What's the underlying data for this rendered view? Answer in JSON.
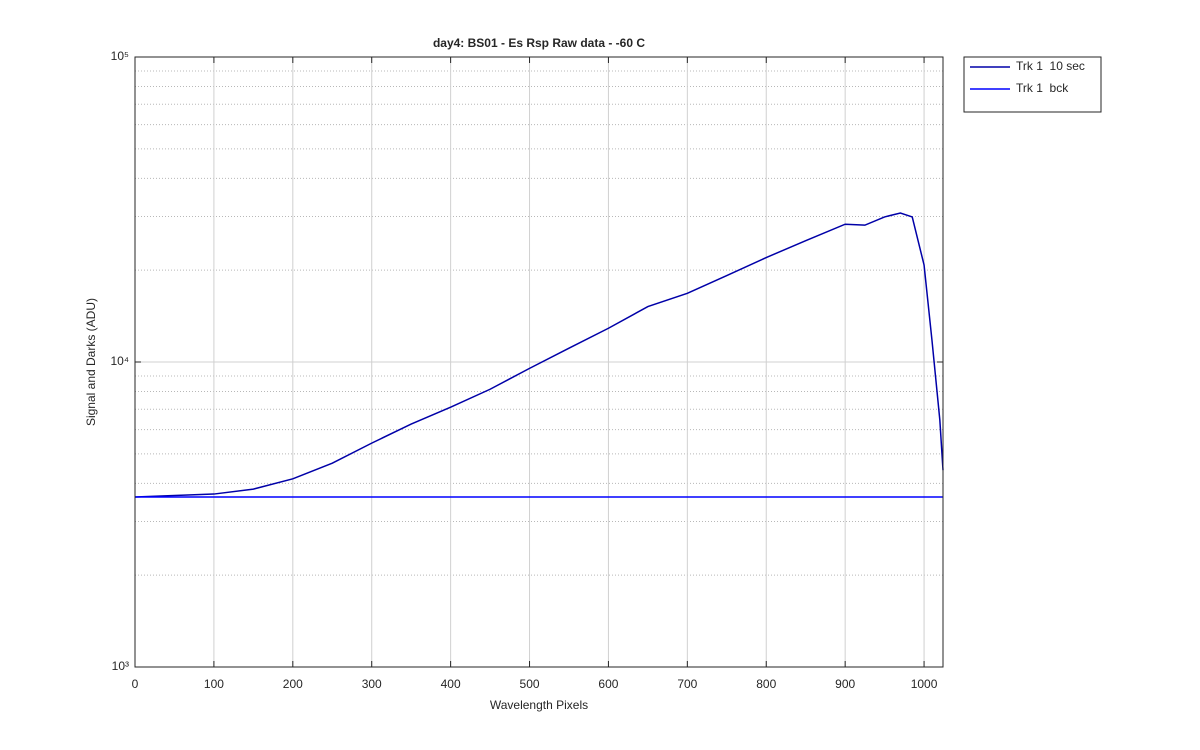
{
  "chart_data": {
    "type": "line",
    "title": "day4: BS01  - Es Rsp Raw data - -60 C",
    "x_label": "Wavelength Pixels",
    "y_label": "Signal and Darks (ADU)",
    "y_log": true,
    "grid": true,
    "legend": "outside-top-right",
    "xlim": [
      0,
      1024
    ],
    "ylim": [
      1000,
      100000
    ],
    "xticks": [
      0,
      100,
      200,
      300,
      400,
      500,
      600,
      700,
      800,
      900,
      1000
    ],
    "yticks": [
      {
        "value": 1000,
        "label": "10³"
      },
      {
        "value": 10000,
        "label": "10⁴"
      },
      {
        "value": 100000,
        "label": "10⁵"
      }
    ],
    "yminorticks": [
      2000,
      3000,
      4000,
      5000,
      6000,
      7000,
      8000,
      9000,
      20000,
      30000,
      40000,
      50000,
      60000,
      70000,
      80000,
      90000
    ],
    "x": [
      0,
      100,
      150,
      200,
      250,
      300,
      350,
      400,
      450,
      500,
      550,
      600,
      650,
      700,
      750,
      800,
      850,
      900,
      925,
      950,
      970,
      985,
      1000,
      1010,
      1020,
      1024
    ],
    "series": [
      {
        "name": "Trk 1  10 sec",
        "color": "#0000a8",
        "values": [
          3610,
          3690,
          3830,
          4140,
          4660,
          5420,
          6260,
          7110,
          8140,
          9530,
          11100,
          12900,
          15200,
          16800,
          19200,
          22000,
          25000,
          28300,
          28100,
          29900,
          30800,
          29900,
          20800,
          11800,
          6450,
          4420
        ]
      },
      {
        "name": "Trk 1  bck",
        "color": "#0000ff",
        "values": [
          3610,
          3610,
          3610,
          3610,
          3610,
          3610,
          3610,
          3610,
          3610,
          3610,
          3610,
          3610,
          3610,
          3610,
          3610,
          3610,
          3610,
          3610,
          3610,
          3610,
          3610,
          3610,
          3610,
          3610,
          3610,
          3610
        ]
      }
    ]
  }
}
